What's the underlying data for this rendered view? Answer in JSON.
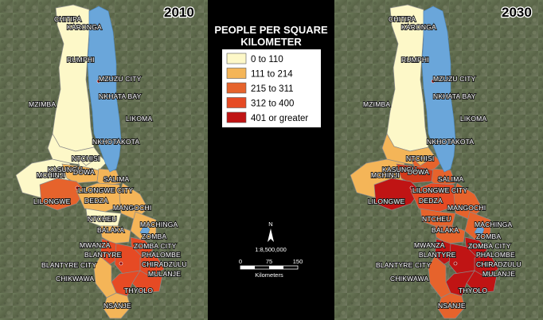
{
  "maps": [
    {
      "year": "2010",
      "fills": {
        "north": "#fdf8c8",
        "central_w": "#fdf8c8",
        "kasungu": "#fdf8c8",
        "ntchisi": "#fdf8c8",
        "dowa": "#f4b558",
        "salima": "#f4b558",
        "lilongwe": "#e6632c",
        "dedza": "#f4b558",
        "mangochi": "#f4b558",
        "machinga": "#f4b558",
        "ntcheu": "#fdf8c8",
        "balaka": "#f4b558",
        "zomba": "#e64a24",
        "blantyre": "#e64a24",
        "south_core": "#e64a24",
        "chiradzulu": "#e64a24",
        "mulanje": "#e64a24",
        "thyolo": "#e64a24",
        "chikwawa": "#f4b558",
        "nsanje": "#f4b558"
      }
    },
    {
      "year": "2030",
      "fills": {
        "north": "#fdf8c8",
        "central_w": "#f4b558",
        "kasungu": "#f4b558",
        "ntchisi": "#e6632c",
        "dowa": "#d23a1a",
        "salima": "#e6632c",
        "lilongwe": "#c01414",
        "dedza": "#e64a24",
        "mangochi": "#e6632c",
        "machinga": "#e6632c",
        "ntcheu": "#e6632c",
        "balaka": "#e6632c",
        "zomba": "#c01414",
        "blantyre": "#c01414",
        "south_core": "#c01414",
        "chiradzulu": "#c01414",
        "mulanje": "#c01414",
        "thyolo": "#c01414",
        "chikwawa": "#e6632c",
        "nsanje": "#e6632c"
      }
    }
  ],
  "labels": [
    {
      "text": "CHITIPA"
    },
    {
      "text": "KARONGA"
    },
    {
      "text": "RUMPHI"
    },
    {
      "text": "MZUZU CITY"
    },
    {
      "text": "MZIMBA"
    },
    {
      "text": "NKHATA BAY"
    },
    {
      "text": "LIKOMA"
    },
    {
      "text": "NKHOTAKOTA"
    },
    {
      "text": "KASUNGU"
    },
    {
      "text": "NTCHISI"
    },
    {
      "text": "MCHINJI"
    },
    {
      "text": "DOWA"
    },
    {
      "text": "SALIMA"
    },
    {
      "text": "LILONGWE CITY"
    },
    {
      "text": "LILONGWE"
    },
    {
      "text": "DEDZA"
    },
    {
      "text": "MANGOCHI"
    },
    {
      "text": "NTCHEU"
    },
    {
      "text": "MACHINGA"
    },
    {
      "text": "BALAKA"
    },
    {
      "text": "ZOMBA"
    },
    {
      "text": "MWANZA"
    },
    {
      "text": "ZOMBA CITY"
    },
    {
      "text": "BLANTYRE"
    },
    {
      "text": "PHALOMBE"
    },
    {
      "text": "BLANTYRE CITY"
    },
    {
      "text": "CHIRADZULU"
    },
    {
      "text": "CHIKWAWA"
    },
    {
      "text": "MULANJE"
    },
    {
      "text": "THYOLO"
    },
    {
      "text": "NSANJE"
    }
  ],
  "legend": {
    "title_line1": "PEOPLE PER SQUARE",
    "title_line2": "KILOMETER",
    "items": [
      {
        "label": "0 to 110",
        "color": "#fdf8c8"
      },
      {
        "label": "111 to 214",
        "color": "#f4b558"
      },
      {
        "label": "215 to 311",
        "color": "#e6632c"
      },
      {
        "label": "312 to 400",
        "color": "#e64a24"
      },
      {
        "label": "401 or greater",
        "color": "#c01414"
      }
    ],
    "north": "N",
    "scale_text": "1:8,500,000",
    "scale_ticks": [
      "0",
      "75",
      "150"
    ],
    "scale_unit": "Kilometers"
  },
  "colors": {
    "lake": "#6aa6da",
    "border": "#8a8a8a",
    "terrain": "#5f6b52"
  }
}
